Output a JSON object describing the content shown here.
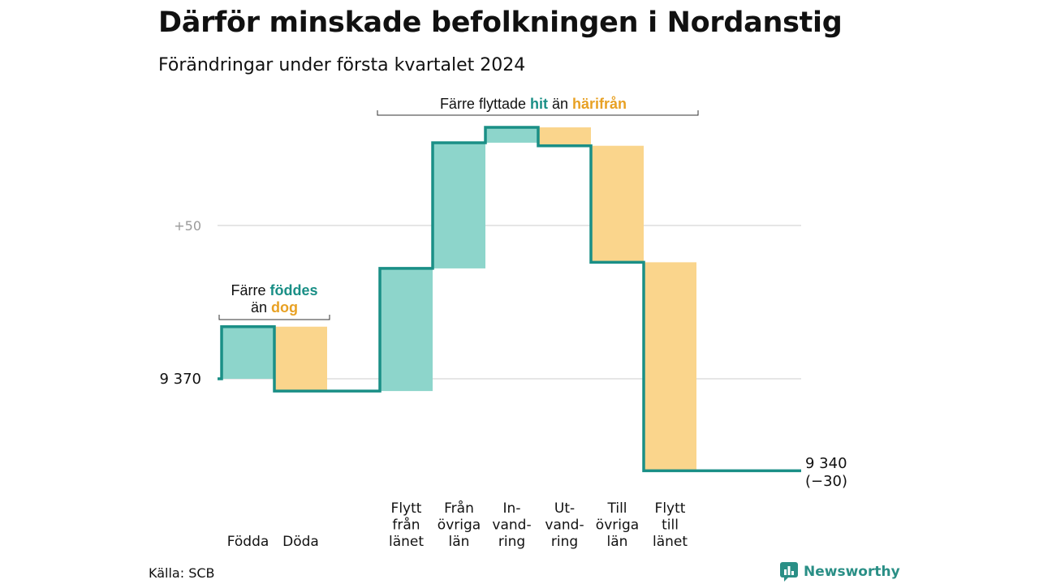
{
  "title": "Därför minskade befolkningen i Nordanstig",
  "subtitle": "Förändringar under första kvartalet 2024",
  "source": "Källa: SCB",
  "brand": {
    "name": "Newsworthy",
    "icon": "newsworthy-logo-icon"
  },
  "colors": {
    "increase": "#8dd5cb",
    "decrease": "#fad58c",
    "line": "#1a8f86",
    "grid": "#dddddd",
    "accent_text": "#e8a124"
  },
  "chart_data": {
    "type": "waterfall",
    "start_label": "9 370",
    "end_label": "9 340",
    "end_change_label": "(−30)",
    "start_value": 9370,
    "end_value": 9340,
    "gridline_label": "+50",
    "gridline_value": 9420,
    "ylim": [
      9335,
      9455
    ],
    "steps": [
      {
        "id": "fodda",
        "label_lines": [
          "Födda"
        ],
        "value": 17,
        "group": "natural"
      },
      {
        "id": "doda",
        "label_lines": [
          "Döda"
        ],
        "value": -21,
        "group": "natural"
      },
      {
        "id": "flytt-fran-lanet",
        "label_lines": [
          "Flytt",
          "från",
          "länet"
        ],
        "value": 40,
        "group": "migration"
      },
      {
        "id": "fran-ovriga-lan",
        "label_lines": [
          "Från",
          "övriga",
          "län"
        ],
        "value": 41,
        "group": "migration"
      },
      {
        "id": "invandring",
        "label_lines": [
          "In-",
          "vand-",
          "ring"
        ],
        "value": 5,
        "group": "migration"
      },
      {
        "id": "utvandring",
        "label_lines": [
          "Ut-",
          "vand-",
          "ring"
        ],
        "value": -6,
        "group": "migration"
      },
      {
        "id": "till-ovriga-lan",
        "label_lines": [
          "Till",
          "övriga",
          "län"
        ],
        "value": -38,
        "group": "migration"
      },
      {
        "id": "flytt-till-lanet",
        "label_lines": [
          "Flytt",
          "till",
          "länet"
        ],
        "value": -68,
        "group": "migration"
      }
    ],
    "annotations": {
      "natural": {
        "prefix": "Färre",
        "hit": "föddes",
        "mid": "än",
        "away": "dog"
      },
      "migration": {
        "prefix": "Färre flyttade",
        "hit": "hit",
        "mid": "än",
        "away": "härifrån"
      }
    }
  }
}
